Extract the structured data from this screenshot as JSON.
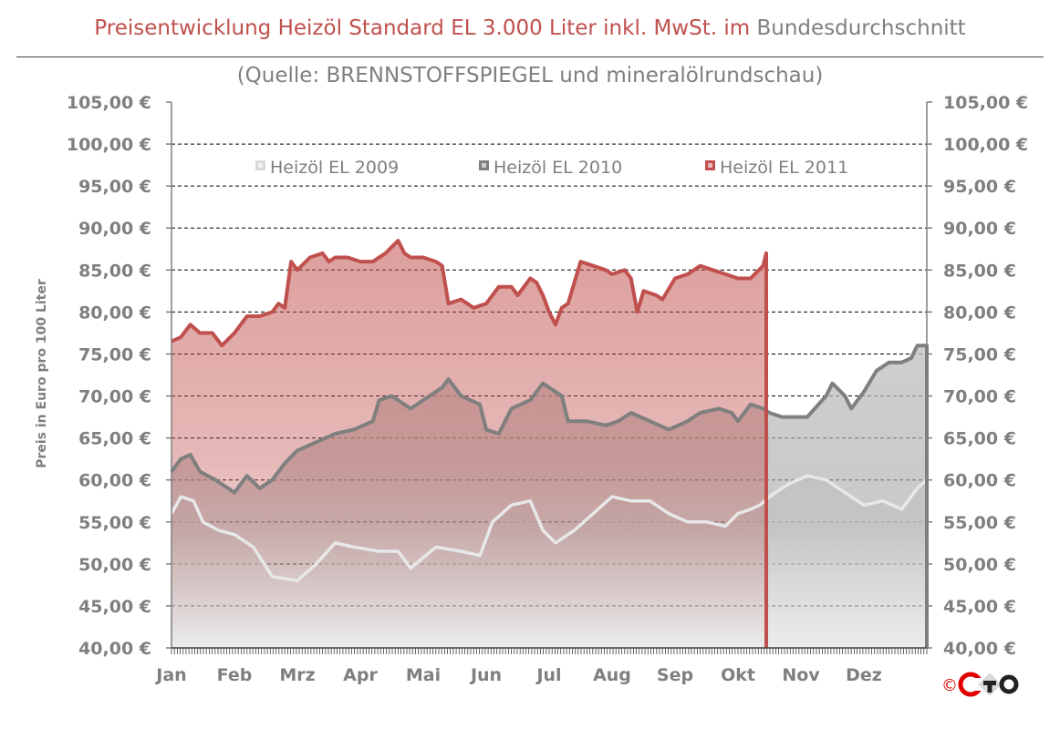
{
  "header": {
    "title_main": "Preisentwicklung Heizöl Standard EL 3.000 Liter inkl. MwSt. im",
    "title_end": "Bundesdurchschnitt",
    "subtitle": "(Quelle: BRENNSTOFFSPIEGEL  und mineralölrundschau)"
  },
  "logo": {
    "copyright_symbol": "©",
    "colors": {
      "ring": "#e00000",
      "dark": "#222222"
    }
  },
  "colors": {
    "title_red": "#c0504d",
    "title_gray": "#7f7f7f",
    "axis_label": "#7f7f7f",
    "series_2011": "#c0504d",
    "series_2010": "#7f7f7f",
    "series_2009": "#d9d9d9"
  },
  "chart_data": {
    "type": "area",
    "title": "Preisentwicklung Heizöl Standard EL 3.000 Liter inkl. MwSt. im Bundesdurchschnitt",
    "subtitle": "(Quelle: BRENNSTOFFSPIEGEL  und mineralölrundschau)",
    "ylabel": "Preis in Euro pro 100 Liter",
    "xlabel": "",
    "ylim": [
      40,
      105
    ],
    "y_ticks": [
      "40,00 €",
      "45,00 €",
      "50,00 €",
      "55,00 €",
      "60,00 €",
      "65,00 €",
      "70,00 €",
      "75,00 €",
      "80,00 €",
      "85,00 €",
      "90,00 €",
      "95,00 €",
      "100,00 €",
      "105,00 €"
    ],
    "y_tick_values": [
      40,
      45,
      50,
      55,
      60,
      65,
      70,
      75,
      80,
      85,
      90,
      95,
      100,
      105
    ],
    "x_categories": [
      "Jan",
      "Feb",
      "Mrz",
      "Apr",
      "Mai",
      "Jun",
      "Jul",
      "Aug",
      "Sep",
      "Okt",
      "Nov",
      "Dez"
    ],
    "grid": "horizontal dashed",
    "secondary_y_axis": true,
    "legend_position": "top",
    "series": [
      {
        "name": "Heizöl EL 2009",
        "points": [
          [
            0.0,
            56
          ],
          [
            0.15,
            58
          ],
          [
            0.35,
            57.5
          ],
          [
            0.5,
            55
          ],
          [
            0.75,
            54
          ],
          [
            1.0,
            53.5
          ],
          [
            1.3,
            52
          ],
          [
            1.6,
            48.5
          ],
          [
            2.0,
            48
          ],
          [
            2.3,
            50
          ],
          [
            2.6,
            52.5
          ],
          [
            2.9,
            52
          ],
          [
            3.3,
            51.5
          ],
          [
            3.6,
            51.5
          ],
          [
            3.8,
            49.5
          ],
          [
            4.2,
            52
          ],
          [
            4.6,
            51.5
          ],
          [
            4.9,
            51
          ],
          [
            5.1,
            55
          ],
          [
            5.4,
            57
          ],
          [
            5.7,
            57.5
          ],
          [
            5.9,
            54
          ],
          [
            6.1,
            52.5
          ],
          [
            6.4,
            54
          ],
          [
            6.7,
            56
          ],
          [
            7.0,
            58
          ],
          [
            7.3,
            57.5
          ],
          [
            7.6,
            57.5
          ],
          [
            7.9,
            56
          ],
          [
            8.2,
            55
          ],
          [
            8.5,
            55
          ],
          [
            8.8,
            54.5
          ],
          [
            9.0,
            56
          ],
          [
            9.2,
            56.5
          ],
          [
            9.35,
            57
          ],
          [
            9.5,
            58
          ],
          [
            9.8,
            59.5
          ],
          [
            10.1,
            60.5
          ],
          [
            10.4,
            60
          ],
          [
            10.7,
            58.5
          ],
          [
            11.0,
            57
          ],
          [
            11.3,
            57.5
          ],
          [
            11.6,
            56.5
          ],
          [
            11.85,
            59
          ],
          [
            12.0,
            60
          ]
        ]
      },
      {
        "name": "Heizöl EL 2010",
        "points": [
          [
            0.0,
            61
          ],
          [
            0.15,
            62.5
          ],
          [
            0.3,
            63
          ],
          [
            0.45,
            61
          ],
          [
            0.7,
            60
          ],
          [
            1.0,
            58.5
          ],
          [
            1.2,
            60.5
          ],
          [
            1.4,
            59
          ],
          [
            1.6,
            60
          ],
          [
            1.8,
            62
          ],
          [
            2.0,
            63.5
          ],
          [
            2.3,
            64.5
          ],
          [
            2.6,
            65.5
          ],
          [
            2.9,
            66
          ],
          [
            3.2,
            67
          ],
          [
            3.3,
            69.5
          ],
          [
            3.5,
            70
          ],
          [
            3.8,
            68.5
          ],
          [
            4.1,
            70
          ],
          [
            4.3,
            71
          ],
          [
            4.4,
            72
          ],
          [
            4.6,
            70
          ],
          [
            4.9,
            69
          ],
          [
            5.0,
            66
          ],
          [
            5.2,
            65.5
          ],
          [
            5.4,
            68.5
          ],
          [
            5.7,
            69.5
          ],
          [
            5.9,
            71.5
          ],
          [
            6.0,
            71
          ],
          [
            6.2,
            70
          ],
          [
            6.3,
            67
          ],
          [
            6.6,
            67
          ],
          [
            6.9,
            66.5
          ],
          [
            7.1,
            67
          ],
          [
            7.3,
            68
          ],
          [
            7.6,
            67
          ],
          [
            7.9,
            66
          ],
          [
            8.2,
            67
          ],
          [
            8.4,
            68
          ],
          [
            8.7,
            68.5
          ],
          [
            8.9,
            68
          ],
          [
            9.0,
            67
          ],
          [
            9.2,
            69
          ],
          [
            9.4,
            68.5
          ],
          [
            9.5,
            68
          ],
          [
            9.7,
            67.5
          ],
          [
            9.9,
            67.5
          ],
          [
            10.1,
            67.5
          ],
          [
            10.4,
            70
          ],
          [
            10.5,
            71.5
          ],
          [
            10.7,
            70
          ],
          [
            10.8,
            68.5
          ],
          [
            11.0,
            70.5
          ],
          [
            11.2,
            73
          ],
          [
            11.4,
            74
          ],
          [
            11.6,
            74
          ],
          [
            11.75,
            74.5
          ],
          [
            11.85,
            76
          ],
          [
            12.0,
            76
          ]
        ]
      },
      {
        "name": "Heizöl EL 2011",
        "points": [
          [
            0.0,
            76.5
          ],
          [
            0.15,
            77
          ],
          [
            0.3,
            78.5
          ],
          [
            0.45,
            77.5
          ],
          [
            0.65,
            77.5
          ],
          [
            0.8,
            76
          ],
          [
            1.0,
            77.5
          ],
          [
            1.2,
            79.5
          ],
          [
            1.4,
            79.5
          ],
          [
            1.6,
            80
          ],
          [
            1.7,
            81
          ],
          [
            1.8,
            80.5
          ],
          [
            1.9,
            86
          ],
          [
            2.0,
            85
          ],
          [
            2.2,
            86.5
          ],
          [
            2.4,
            87
          ],
          [
            2.5,
            86
          ],
          [
            2.6,
            86.5
          ],
          [
            2.8,
            86.5
          ],
          [
            3.0,
            86
          ],
          [
            3.2,
            86
          ],
          [
            3.4,
            87
          ],
          [
            3.6,
            88.5
          ],
          [
            3.7,
            87
          ],
          [
            3.8,
            86.5
          ],
          [
            4.0,
            86.5
          ],
          [
            4.2,
            86
          ],
          [
            4.3,
            85.5
          ],
          [
            4.4,
            81
          ],
          [
            4.6,
            81.5
          ],
          [
            4.8,
            80.5
          ],
          [
            5.0,
            81
          ],
          [
            5.2,
            83
          ],
          [
            5.4,
            83
          ],
          [
            5.5,
            82
          ],
          [
            5.7,
            84
          ],
          [
            5.8,
            83.5
          ],
          [
            5.9,
            82
          ],
          [
            6.0,
            80
          ],
          [
            6.1,
            78.5
          ],
          [
            6.2,
            80.5
          ],
          [
            6.3,
            81
          ],
          [
            6.5,
            86
          ],
          [
            6.7,
            85.5
          ],
          [
            6.9,
            85
          ],
          [
            7.0,
            84.5
          ],
          [
            7.2,
            85
          ],
          [
            7.3,
            84
          ],
          [
            7.4,
            80
          ],
          [
            7.5,
            82.5
          ],
          [
            7.7,
            82
          ],
          [
            7.8,
            81.5
          ],
          [
            8.0,
            84
          ],
          [
            8.2,
            84.5
          ],
          [
            8.4,
            85.5
          ],
          [
            8.6,
            85
          ],
          [
            8.8,
            84.5
          ],
          [
            9.0,
            84
          ],
          [
            9.2,
            84
          ],
          [
            9.4,
            85.5
          ],
          [
            9.45,
            87
          ]
        ]
      }
    ]
  }
}
